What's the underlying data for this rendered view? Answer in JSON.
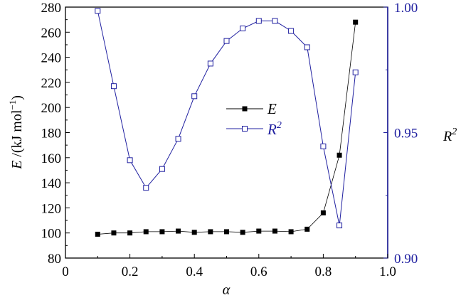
{
  "chart_data": {
    "type": "line",
    "x_label": "α",
    "y_left": {
      "label_prefix": "E",
      "label_unit": "/(kJ mol",
      "label_unit_exp": "−1",
      "label_close": ")",
      "range": [
        80,
        280
      ],
      "ticks": [
        80,
        100,
        120,
        140,
        160,
        180,
        200,
        220,
        240,
        260,
        280
      ]
    },
    "y_right": {
      "label": "R",
      "label_exp": "2",
      "range": [
        0.9,
        1.0
      ],
      "ticks": [
        "0.90",
        "0.95",
        "1.00"
      ],
      "color": "#2020a0"
    },
    "x_axis": {
      "range": [
        0,
        1.0
      ],
      "ticks": [
        "0",
        "0.2",
        "0.4",
        "0.6",
        "0.8",
        "1.0"
      ]
    },
    "legend": {
      "position": "center",
      "E_label": "E",
      "R2_label": "R",
      "R2_label_exp": "2"
    },
    "series": [
      {
        "name": "E",
        "axis": "left",
        "color": "#000000",
        "marker": "filled-square",
        "x": [
          0.1,
          0.15,
          0.2,
          0.25,
          0.3,
          0.35,
          0.4,
          0.45,
          0.5,
          0.55,
          0.6,
          0.65,
          0.7,
          0.75,
          0.8,
          0.85,
          0.9
        ],
        "y": [
          99,
          100,
          100,
          101,
          101,
          101.5,
          100.5,
          101,
          101,
          100.5,
          101.5,
          101.5,
          101,
          103,
          116,
          162,
          268
        ]
      },
      {
        "name": "R²",
        "axis": "right",
        "color": "#2020a0",
        "marker": "open-square",
        "x": [
          0.1,
          0.15,
          0.2,
          0.25,
          0.3,
          0.35,
          0.4,
          0.45,
          0.5,
          0.55,
          0.6,
          0.65,
          0.7,
          0.75,
          0.8,
          0.85,
          0.9
        ],
        "y": [
          0.9985,
          0.9685,
          0.939,
          0.928,
          0.9355,
          0.9475,
          0.9645,
          0.9775,
          0.9865,
          0.9915,
          0.9945,
          0.9945,
          0.9905,
          0.984,
          0.9445,
          0.913,
          0.974
        ]
      }
    ]
  }
}
